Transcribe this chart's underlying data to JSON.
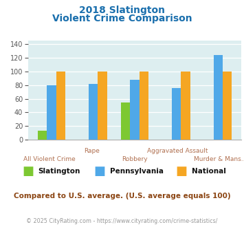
{
  "title_line1": "2018 Slatington",
  "title_line2": "Violent Crime Comparison",
  "categories": [
    "All Violent Crime",
    "Rape",
    "Robbery",
    "Aggravated Assault",
    "Murder & Mans..."
  ],
  "slatington": [
    13,
    0,
    54,
    0,
    0
  ],
  "pennsylvania": [
    80,
    82,
    88,
    76,
    124
  ],
  "national": [
    100,
    100,
    100,
    100,
    100
  ],
  "color_slatington": "#7dc832",
  "color_pennsylvania": "#4fa8e8",
  "color_national": "#f5a623",
  "ylim": [
    0,
    145
  ],
  "yticks": [
    0,
    20,
    40,
    60,
    80,
    100,
    120,
    140
  ],
  "background_color": "#ddeef0",
  "subtitle_note": "Compared to U.S. average. (U.S. average equals 100)",
  "footer": "© 2025 CityRating.com - https://www.cityrating.com/crime-statistics/",
  "title_color": "#1a6fad",
  "subtitle_color": "#8b4513",
  "footer_color": "#999999",
  "xlabel_upper_color": "#b08060",
  "xlabel_lower_color": "#b08060",
  "bar_width": 0.22
}
